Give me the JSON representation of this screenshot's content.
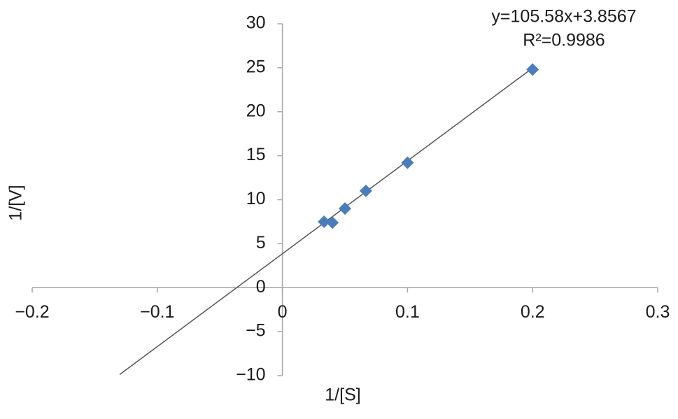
{
  "chart_data": {
    "type": "scatter",
    "x_label": "1/[S]",
    "y_label": "1/[V]",
    "x": [
      0.0333,
      0.04,
      0.05,
      0.0667,
      0.1,
      0.2
    ],
    "values": [
      7.5,
      7.4,
      9.0,
      11.0,
      14.2,
      24.8
    ],
    "color": "#4a7ebb",
    "xlim": [
      -0.2,
      0.3
    ],
    "ylim": [
      -10,
      30
    ],
    "xticks": [
      {
        "value": -0.2,
        "label": "−0.2"
      },
      {
        "value": -0.1,
        "label": "−0.1"
      },
      0,
      0.1,
      0.2,
      0.3
    ],
    "yticks": [
      {
        "value": -10,
        "label": "−10"
      },
      {
        "value": -5,
        "label": "−5"
      },
      0,
      5,
      10,
      15,
      20,
      25,
      30
    ],
    "trendline": {
      "slope": 105.58,
      "intercept": 3.8567,
      "xlim": [
        -0.13,
        0.2
      ],
      "color": "#555555",
      "equation_label": "y=105.58x+3.8567",
      "r2_label": "R²=0.9986"
    }
  }
}
